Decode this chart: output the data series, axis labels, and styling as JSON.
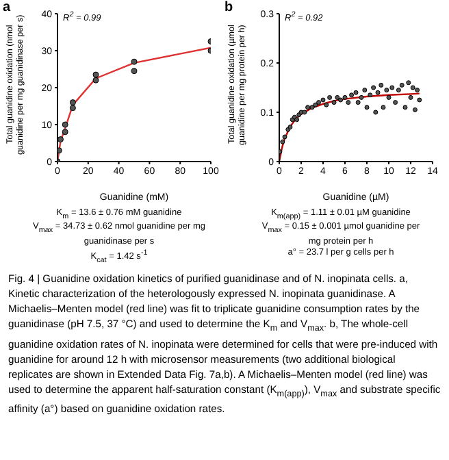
{
  "chart_data": [
    {
      "type": "scatter",
      "title": "a",
      "xlabel": "Guanidine (mM)",
      "ylabel": "Total guanidine oxidation (nmol guanidine per mg guanidinase per s)",
      "xlim": [
        0,
        100
      ],
      "xticks": [
        0,
        20,
        40,
        60,
        80,
        100
      ],
      "ylim": [
        0,
        40
      ],
      "yticks": [
        0,
        10,
        20,
        30,
        40
      ],
      "grid": false,
      "legend": false,
      "annotations": [
        "R$^{2}$ = 0.99",
        "K$_{m}$ = 13.6 ± 0.76 mM guanidine",
        "V$_{max}$ = 34.73 ± 0.62 nmol guanidine per mg guanidinase per s",
        "K$_{cat}$ = 1.42 s$^{-1}$"
      ],
      "series": [
        {
          "type": "scatter",
          "marker": "circle",
          "color": "#555555",
          "x": [
            0,
            1,
            2,
            5,
            5,
            10,
            10,
            25,
            25,
            50,
            50,
            100,
            100
          ],
          "values": [
            0,
            3,
            6,
            8,
            10,
            14.5,
            16,
            22,
            23.5,
            24.5,
            27,
            30,
            32.5
          ]
        },
        {
          "type": "line",
          "marker": "none",
          "color": "#e03030",
          "x": [
            0,
            2,
            5,
            10,
            25,
            50,
            100
          ],
          "values": [
            0,
            5.5,
            9,
            15.3,
            22.5,
            26.7,
            30.8
          ]
        }
      ]
    },
    {
      "type": "scatter",
      "title": "b",
      "xlabel": "Guanidine (µM)",
      "ylabel": "Total guanidine oxidation (µmol guanidine per mg protein per h)",
      "xlim": [
        0,
        14
      ],
      "xticks": [
        0,
        2,
        4,
        6,
        8,
        10,
        12,
        14
      ],
      "ylim": [
        0,
        0.3
      ],
      "yticks": [
        0,
        0.1,
        0.2,
        0.3
      ],
      "grid": false,
      "legend": false,
      "annotations": [
        "R$^{2}$ = 0.92",
        "K$_{m(app)}$ = 1.11 ± 0.01 µM guanidine",
        "V$_{max}$ = 0.15 ± 0.001 µmol guanidine per mg protein per h",
        "a° = 23.7 l per g cells per h"
      ],
      "series": [
        {
          "type": "scatter",
          "marker": "circle",
          "color": "#555555",
          "x": [
            0.05,
            0.3,
            0.5,
            0.8,
            1.0,
            1.2,
            1.4,
            1.6,
            1.8,
            2.0,
            2.3,
            2.6,
            3.0,
            3.3,
            3.6,
            4.0,
            4.3,
            4.6,
            5.0,
            5.3,
            5.6,
            6.0,
            6.3,
            6.6,
            7.0,
            7.2,
            7.5,
            7.8,
            8.0,
            8.3,
            8.6,
            8.8,
            9.0,
            9.3,
            9.5,
            9.8,
            10.0,
            10.3,
            10.6,
            10.9,
            11.2,
            11.5,
            11.8,
            12.0,
            12.2,
            12.4,
            12.6,
            12.8
          ],
          "values": [
            0.02,
            0.04,
            0.05,
            0.065,
            0.07,
            0.085,
            0.09,
            0.085,
            0.095,
            0.1,
            0.1,
            0.11,
            0.11,
            0.115,
            0.12,
            0.125,
            0.115,
            0.13,
            0.12,
            0.13,
            0.125,
            0.13,
            0.12,
            0.135,
            0.14,
            0.12,
            0.13,
            0.145,
            0.11,
            0.135,
            0.15,
            0.1,
            0.14,
            0.155,
            0.11,
            0.145,
            0.13,
            0.15,
            0.12,
            0.145,
            0.155,
            0.11,
            0.16,
            0.13,
            0.15,
            0.105,
            0.145,
            0.125
          ]
        },
        {
          "type": "line",
          "marker": "none",
          "color": "#c00000",
          "x": [
            0,
            0.25,
            0.5,
            1,
            1.5,
            2,
            3,
            4,
            5,
            6,
            8,
            10,
            12,
            12.8
          ],
          "values": [
            0,
            0.028,
            0.047,
            0.071,
            0.086,
            0.096,
            0.109,
            0.117,
            0.123,
            0.127,
            0.132,
            0.135,
            0.137,
            0.138
          ]
        }
      ]
    },
    {
      "type": "other",
      "annotations": [
        "Fig. 4 | Guanidine oxidation kinetics of purified guanidinase and of N. inopinata cells. a, Kinetic characterization of the heterologously expressed N. inopinata guanidinase. A Michaelis–Menten model (red line) was fit to triplicate guanidine consumption rates by the guanidinase (pH 7.5, 37 °C) and used to determine the K$_{m}$ and V$_{max}$. b, The whole-cell guanidine oxidation rates of N. inopinata were determined for cells that were pre-induced with guanidine for around 12 h with microsensor measurements (two additional biological replicates are shown in Extended Data Fig. 7a,b). A Michaelis–Menten model (red line) was used to determine the apparent half-saturation constant (K$_{m(app)}$), V$_{max}$ and substrate specific affinity (a°) based on guanidine oxidation rates."
      ]
    }
  ]
}
